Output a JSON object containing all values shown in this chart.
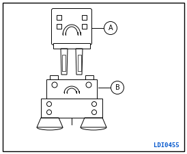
{
  "background_color": "#ffffff",
  "line_color": "#000000",
  "label_A": "A",
  "label_B": "B",
  "watermark": "LDI0455",
  "watermark_blue": "#0055cc",
  "fig_width": 2.74,
  "fig_height": 2.25,
  "dpi": 100
}
